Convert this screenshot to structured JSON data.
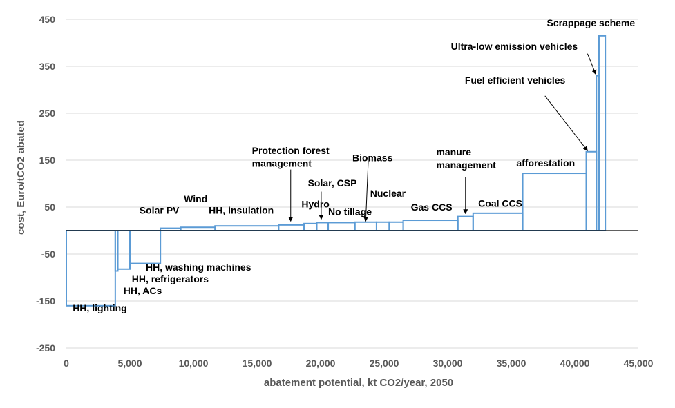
{
  "chart_data": {
    "type": "bar",
    "subtype": "marginal-abatement-cost-curve",
    "xlabel": "abatement potential, kt CO2/year, 2050",
    "ylabel": "cost, Euro/tCO2 abated",
    "xlim": [
      0,
      45000
    ],
    "ylim": [
      -250,
      450
    ],
    "xticks": [
      0,
      5000,
      10000,
      15000,
      20000,
      25000,
      30000,
      35000,
      40000,
      45000
    ],
    "xtick_labels": [
      "0",
      "5,000",
      "10,000",
      "15,000",
      "20,000",
      "25,000",
      "30,000",
      "35,000",
      "40,000",
      "45,000"
    ],
    "yticks": [
      -250,
      -150,
      -50,
      50,
      150,
      250,
      350,
      450
    ],
    "ytick_labels": [
      "-250",
      "-150",
      "-50",
      "50",
      "150",
      "250",
      "350",
      "450"
    ],
    "grid": "horizontal",
    "series_color": "#5b9bd5",
    "bars": [
      {
        "x0": 0,
        "x1": 3850,
        "y": -160
      },
      {
        "x0": 3850,
        "x1": 4050,
        "y": -86
      },
      {
        "x0": 4050,
        "x1": 5000,
        "y": -82
      },
      {
        "x0": 5000,
        "x1": 7400,
        "y": -70
      },
      {
        "x0": 7400,
        "x1": 9000,
        "y": 5
      },
      {
        "x0": 9000,
        "x1": 11700,
        "y": 7
      },
      {
        "x0": 11700,
        "x1": 16700,
        "y": 10
      },
      {
        "x0": 16700,
        "x1": 18700,
        "y": 12
      },
      {
        "x0": 18700,
        "x1": 19700,
        "y": 15
      },
      {
        "x0": 19700,
        "x1": 20600,
        "y": 17
      },
      {
        "x0": 20600,
        "x1": 22700,
        "y": 17
      },
      {
        "x0": 22700,
        "x1": 24400,
        "y": 18
      },
      {
        "x0": 24400,
        "x1": 25400,
        "y": 18
      },
      {
        "x0": 25400,
        "x1": 26500,
        "y": 18
      },
      {
        "x0": 26500,
        "x1": 30800,
        "y": 22
      },
      {
        "x0": 30800,
        "x1": 32000,
        "y": 30
      },
      {
        "x0": 32000,
        "x1": 35900,
        "y": 37
      },
      {
        "x0": 35900,
        "x1": 40900,
        "y": 122
      },
      {
        "x0": 40900,
        "x1": 41700,
        "y": 168
      },
      {
        "x0": 41700,
        "x1": 41900,
        "y": 330
      },
      {
        "x0": 41900,
        "x1": 42400,
        "y": 415
      }
    ],
    "annotations": [
      {
        "text": "HH, lighting",
        "x": 500,
        "y": -172
      },
      {
        "text": "HH, ACs",
        "x": 4500,
        "y": -135
      },
      {
        "text": "HH, refrigerators",
        "x": 5150,
        "y": -110
      },
      {
        "text": "HH, washing machines",
        "x": 6250,
        "y": -85
      },
      {
        "text": "Solar PV",
        "x": 5750,
        "y": 36
      },
      {
        "text": "Wind",
        "x": 9250,
        "y": 60
      },
      {
        "text": "HH, insulation",
        "x": 11200,
        "y": 36
      },
      {
        "text": "Protection forest",
        "x": 14600,
        "y": 163
      },
      {
        "text": "management",
        "x": 14600,
        "y": 136
      },
      {
        "text": "Hydro",
        "x": 18500,
        "y": 49
      },
      {
        "text": "Solar, CSP",
        "x": 19000,
        "y": 94
      },
      {
        "text": "No tillage",
        "x": 20600,
        "y": 33
      },
      {
        "text": "Biomass",
        "x": 22500,
        "y": 148
      },
      {
        "text": "Nuclear",
        "x": 23900,
        "y": 72
      },
      {
        "text": "Gas CCS",
        "x": 27100,
        "y": 43
      },
      {
        "text": "manure",
        "x": 29100,
        "y": 160
      },
      {
        "text": "management",
        "x": 29100,
        "y": 132
      },
      {
        "text": "Coal CCS",
        "x": 32400,
        "y": 51
      },
      {
        "text": "afforestation",
        "x": 35400,
        "y": 137
      },
      {
        "text": "Fuel efficient vehicles",
        "x": 31350,
        "y": 313
      },
      {
        "text": "Ultra-low emission vehicles",
        "x": 30250,
        "y": 385
      },
      {
        "text": "Scrappage scheme",
        "x": 37800,
        "y": 435
      }
    ],
    "arrows": [
      {
        "x0": 17650,
        "y0": 130,
        "x1": 17650,
        "y1": 20
      },
      {
        "x0": 20050,
        "y0": 83,
        "x1": 20050,
        "y1": 24
      },
      {
        "x0": 23750,
        "y0": 148,
        "x1": 23550,
        "y1": 20
      },
      {
        "x0": 31400,
        "y0": 114,
        "x1": 31400,
        "y1": 36
      },
      {
        "x0": 37650,
        "y0": 287,
        "x1": 41000,
        "y1": 170
      },
      {
        "x0": 41000,
        "y0": 377,
        "x1": 41650,
        "y1": 333
      }
    ]
  }
}
